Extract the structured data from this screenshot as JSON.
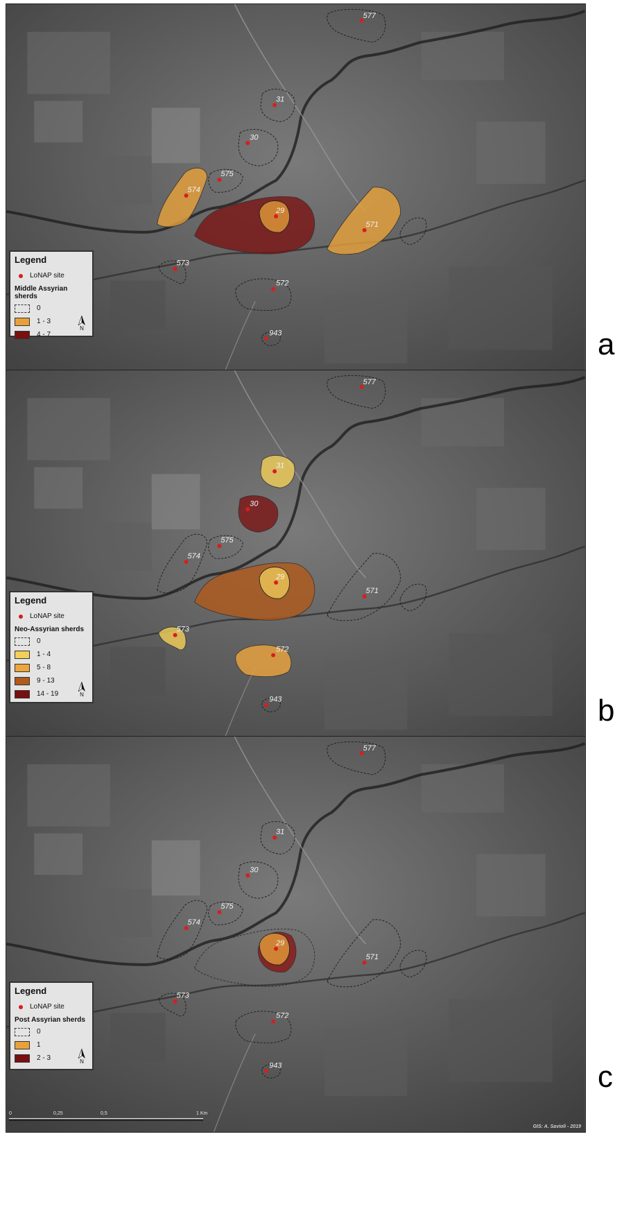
{
  "panels": [
    {
      "letter": "a",
      "legend_title": "Legend",
      "site_label": "LoNAP site",
      "symbology_title": "Middle Assyrian sherds",
      "classes": [
        {
          "label": "0",
          "color": "none"
        },
        {
          "label": "1 - 3",
          "color": "#e8a13a"
        },
        {
          "label": "4 - 7",
          "color": "#7a0f0f"
        }
      ],
      "site_values": {
        "577": "0",
        "31": "0",
        "30": "0",
        "575": "0",
        "574": "1 - 3",
        "29": "4 - 7",
        "571": "1 - 3",
        "573": "0",
        "572": "0",
        "943": "0"
      }
    },
    {
      "letter": "b",
      "legend_title": "Legend",
      "site_label": "LoNAP site",
      "symbology_title": "Neo-Assyrian sherds",
      "classes": [
        {
          "label": "0",
          "color": "none"
        },
        {
          "label": "1 - 4",
          "color": "#f2cf5a"
        },
        {
          "label": "5 - 8",
          "color": "#eda53d"
        },
        {
          "label": "9 - 13",
          "color": "#b05a1c"
        },
        {
          "label": "14 - 19",
          "color": "#7a0f0f"
        }
      ],
      "site_values": {
        "577": "0",
        "31": "1 - 4",
        "30": "14 - 19",
        "575": "0",
        "574": "0",
        "29": "9 - 13",
        "571": "0",
        "573": "1 - 4",
        "572": "5 - 8",
        "943": "0"
      }
    },
    {
      "letter": "c",
      "legend_title": "Legend",
      "site_label": "LoNAP site",
      "symbology_title": "Post Assyrian sherds",
      "classes": [
        {
          "label": "0",
          "color": "none"
        },
        {
          "label": "1",
          "color": "#e8a13a"
        },
        {
          "label": "2 - 3",
          "color": "#7a0f0f"
        }
      ],
      "site_values": {
        "577": "0",
        "31": "0",
        "30": "0",
        "575": "0",
        "574": "0",
        "29": "2 - 3",
        "571": "0",
        "573": "0",
        "572": "0",
        "943": "0"
      }
    }
  ],
  "sites": [
    "577",
    "31",
    "30",
    "575",
    "574",
    "29",
    "571",
    "573",
    "572",
    "943"
  ],
  "scalebar": {
    "ticks": [
      "0",
      "0,25",
      "0,5",
      "1 Km"
    ]
  },
  "north_label": "N",
  "credit": "GIS: A. Savioli - 2019"
}
